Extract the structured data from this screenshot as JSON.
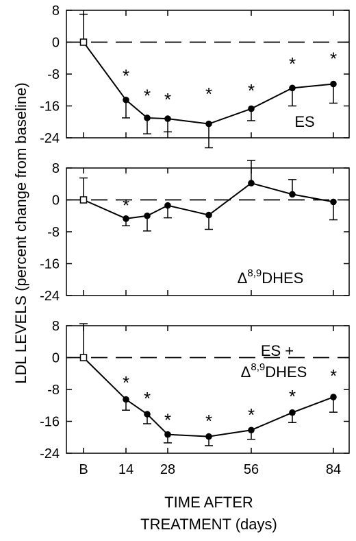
{
  "chart_data": {
    "type": "line",
    "ylabel": "LDL LEVELS (percent change from baseline)",
    "xlabel_line1": "TIME AFTER",
    "xlabel_line2": "TREATMENT (days)",
    "x_ticks": [
      "B",
      "14",
      "28",
      "56",
      "84"
    ],
    "y_ticks": [
      "8",
      "0",
      "-8",
      "-16",
      "-24"
    ],
    "ylim": [
      -24,
      8
    ],
    "grid": false,
    "reference_line": "dashed line at 0",
    "panels": [
      {
        "label": "ES",
        "label_parts": [
          "ES"
        ],
        "x": [
          "B",
          14,
          21,
          28,
          42,
          56,
          70,
          84
        ],
        "y": [
          0,
          -14.5,
          -19,
          -19.2,
          -20.5,
          -16.7,
          -11.5,
          -10.5
        ],
        "error": [
          7,
          4.5,
          4,
          3.3,
          6,
          3,
          4.5,
          4.8
        ],
        "significant": [
          false,
          true,
          true,
          true,
          true,
          true,
          true,
          true
        ]
      },
      {
        "label": "Δ8,9DHES",
        "label_parts": [
          "Δ",
          "8,9",
          "DHES"
        ],
        "x": [
          "B",
          14,
          21,
          28,
          42,
          56,
          70,
          84
        ],
        "y": [
          0,
          -4.7,
          -4,
          -1.4,
          -3.8,
          4.2,
          1.4,
          -0.5
        ],
        "error": [
          5.5,
          1.8,
          3.8,
          3.1,
          3.6,
          5.7,
          3.7,
          4.5
        ],
        "significant": [
          false,
          true,
          false,
          false,
          false,
          false,
          false,
          false
        ]
      },
      {
        "label": "ES + Δ8,9DHES",
        "label_parts": [
          "ES +",
          "Δ",
          "8,9",
          "DHES"
        ],
        "x": [
          "B",
          14,
          21,
          28,
          42,
          56,
          70,
          84
        ],
        "y": [
          0,
          -10.5,
          -14.2,
          -19.3,
          -19.8,
          -18.2,
          -13.8,
          -9.9
        ],
        "error": [
          8.5,
          2.7,
          2.4,
          2.1,
          2.3,
          2.3,
          2.5,
          3.8
        ],
        "significant": [
          false,
          true,
          true,
          true,
          true,
          true,
          true,
          true
        ]
      }
    ]
  }
}
